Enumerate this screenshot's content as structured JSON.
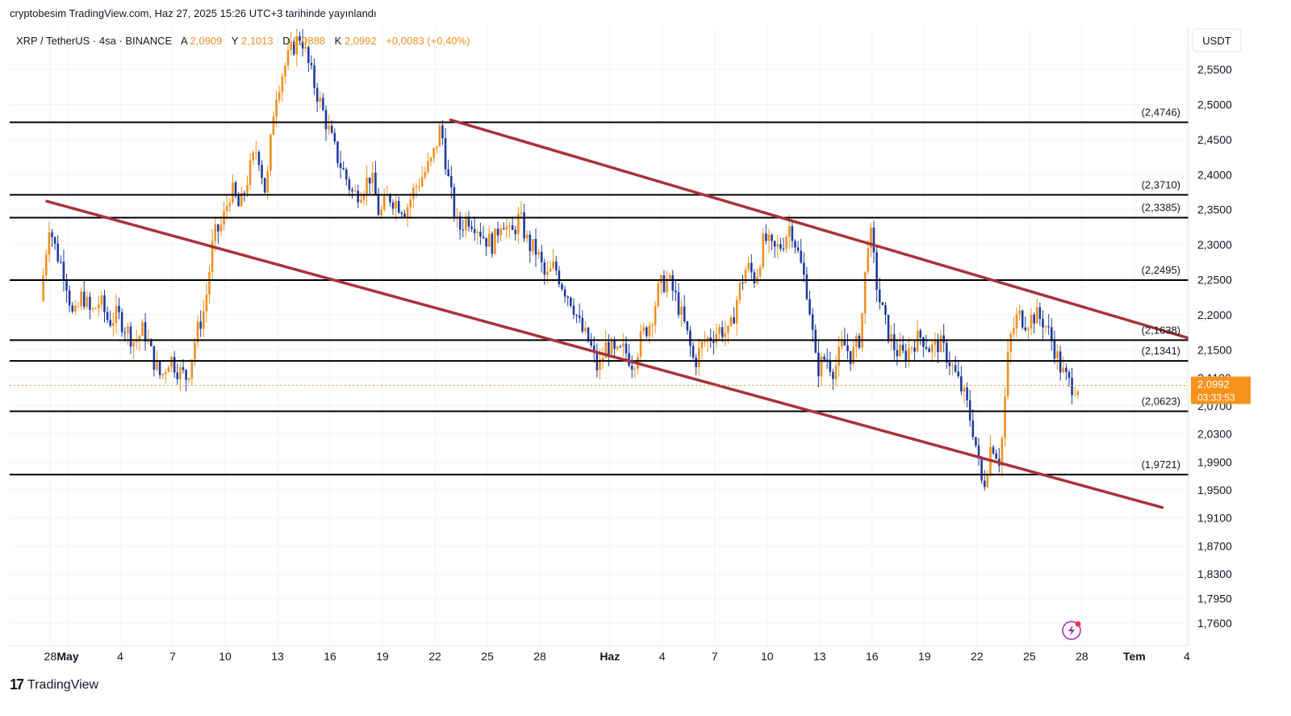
{
  "header": {
    "publisher": "cryptobesim TradingView.com, Haz 27, 2025 15:26 UTC+3 tarihinde yayınlandı"
  },
  "legend": {
    "symbol": "XRP / TetherUS · 4sa · BINANCE",
    "open_label": "A",
    "open_value": "2,0909",
    "high_label": "Y",
    "high_value": "2,1013",
    "low_label": "D",
    "low_value": "2,0888",
    "close_label": "K",
    "close_value": "2,0992",
    "change": "+0,0083 (+0,40%)"
  },
  "price_axis": {
    "currency": "USDT",
    "last_price": "2,0992",
    "countdown": "03:33:53",
    "colors": {
      "up": "#f0901e",
      "down": "#1f3c9e",
      "channel": "#a93239",
      "level": "#000000",
      "last_price_bg": "#f7931a"
    }
  },
  "footer": {
    "brand": "TradingView",
    "logo": "tradingview-logo-icon"
  },
  "chart_data": {
    "type": "candlestick",
    "title": "XRP / TetherUS · 4sa · BINANCE",
    "ylim": [
      1.73,
      2.63
    ],
    "y_ticks": [
      {
        "value": 2.55,
        "label": "2,5500"
      },
      {
        "value": 2.5,
        "label": "2,5000"
      },
      {
        "value": 2.45,
        "label": "2,4500"
      },
      {
        "value": 2.4,
        "label": "2,4000"
      },
      {
        "value": 2.35,
        "label": "2,3500"
      },
      {
        "value": 2.3,
        "label": "2,3000"
      },
      {
        "value": 2.25,
        "label": "2,2500"
      },
      {
        "value": 2.2,
        "label": "2,2000"
      },
      {
        "value": 2.15,
        "label": "2,1500"
      },
      {
        "value": 2.11,
        "label": "2,1100"
      },
      {
        "value": 2.07,
        "label": "2,0700"
      },
      {
        "value": 2.03,
        "label": "2,0300"
      },
      {
        "value": 1.99,
        "label": "1,9900"
      },
      {
        "value": 1.95,
        "label": "1,9500"
      },
      {
        "value": 1.91,
        "label": "1,9100"
      },
      {
        "value": 1.87,
        "label": "1,8700"
      },
      {
        "value": 1.83,
        "label": "1,8300"
      },
      {
        "value": 1.795,
        "label": "1,7950"
      },
      {
        "value": 1.76,
        "label": "1,7600"
      }
    ],
    "x_ticks": [
      {
        "day": -1,
        "label": "28"
      },
      {
        "day": 0,
        "label": "May"
      },
      {
        "day": 3,
        "label": "4"
      },
      {
        "day": 6,
        "label": "7"
      },
      {
        "day": 9,
        "label": "10"
      },
      {
        "day": 12,
        "label": "13"
      },
      {
        "day": 15,
        "label": "16"
      },
      {
        "day": 18,
        "label": "19"
      },
      {
        "day": 21,
        "label": "22"
      },
      {
        "day": 24,
        "label": "25"
      },
      {
        "day": 27,
        "label": "28"
      },
      {
        "day": 31,
        "label": "Haz"
      },
      {
        "day": 34,
        "label": "4"
      },
      {
        "day": 37,
        "label": "7"
      },
      {
        "day": 40,
        "label": "10"
      },
      {
        "day": 43,
        "label": "13"
      },
      {
        "day": 46,
        "label": "16"
      },
      {
        "day": 49,
        "label": "19"
      },
      {
        "day": 52,
        "label": "22"
      },
      {
        "day": 55,
        "label": "25"
      },
      {
        "day": 58,
        "label": "28"
      },
      {
        "day": 61,
        "label": "Tem"
      },
      {
        "day": 64,
        "label": "4"
      }
    ],
    "horizontal_levels": [
      {
        "value": 2.4746,
        "label": "(2,4746)"
      },
      {
        "value": 2.371,
        "label": "(2,3710)"
      },
      {
        "value": 2.3385,
        "label": "(2,3385)"
      },
      {
        "value": 2.2495,
        "label": "(2,2495)"
      },
      {
        "value": 2.1638,
        "label": "(2,1638)"
      },
      {
        "value": 2.1341,
        "label": "(2,1341)"
      },
      {
        "value": 2.0623,
        "label": "(2,0623)"
      },
      {
        "value": 1.9721,
        "label": "(1,9721)"
      }
    ],
    "channel_lines": [
      {
        "name": "upper",
        "points": [
          [
            21.9,
            2.478
          ],
          [
            64.05,
            2.167
          ]
        ]
      },
      {
        "name": "lower",
        "points": [
          [
            -1.2,
            2.362
          ],
          [
            62.6,
            1.925
          ]
        ]
      }
    ],
    "price_path": [
      [
        -1.4,
        2.22
      ],
      [
        -0.9,
        2.33
      ],
      [
        -0.5,
        2.29
      ],
      [
        0.0,
        2.26
      ],
      [
        0.5,
        2.19
      ],
      [
        1.0,
        2.23
      ],
      [
        1.5,
        2.2
      ],
      [
        2.0,
        2.22
      ],
      [
        2.5,
        2.19
      ],
      [
        3.0,
        2.2
      ],
      [
        3.5,
        2.18
      ],
      [
        4.0,
        2.16
      ],
      [
        4.5,
        2.18
      ],
      [
        5.0,
        2.14
      ],
      [
        5.5,
        2.11
      ],
      [
        6.0,
        2.14
      ],
      [
        6.5,
        2.12
      ],
      [
        7.0,
        2.11
      ],
      [
        7.5,
        2.17
      ],
      [
        8.0,
        2.21
      ],
      [
        8.5,
        2.31
      ],
      [
        9.0,
        2.33
      ],
      [
        9.5,
        2.38
      ],
      [
        10.0,
        2.35
      ],
      [
        10.5,
        2.4
      ],
      [
        11.0,
        2.44
      ],
      [
        11.5,
        2.37
      ],
      [
        12.0,
        2.51
      ],
      [
        12.5,
        2.55
      ],
      [
        13.0,
        2.58
      ],
      [
        13.5,
        2.6
      ],
      [
        14.0,
        2.55
      ],
      [
        14.5,
        2.51
      ],
      [
        15.0,
        2.47
      ],
      [
        15.5,
        2.43
      ],
      [
        16.0,
        2.4
      ],
      [
        16.5,
        2.37
      ],
      [
        17.0,
        2.38
      ],
      [
        17.5,
        2.4
      ],
      [
        18.0,
        2.34
      ],
      [
        18.5,
        2.37
      ],
      [
        19.0,
        2.36
      ],
      [
        19.5,
        2.35
      ],
      [
        20.0,
        2.38
      ],
      [
        20.5,
        2.4
      ],
      [
        21.0,
        2.42
      ],
      [
        21.5,
        2.47
      ],
      [
        22.0,
        2.38
      ],
      [
        22.5,
        2.32
      ],
      [
        23.0,
        2.34
      ],
      [
        23.5,
        2.33
      ],
      [
        24.0,
        2.31
      ],
      [
        24.5,
        2.3
      ],
      [
        25.0,
        2.34
      ],
      [
        25.5,
        2.31
      ],
      [
        26.0,
        2.34
      ],
      [
        26.5,
        2.3
      ],
      [
        27.0,
        2.29
      ],
      [
        27.5,
        2.25
      ],
      [
        28.0,
        2.27
      ],
      [
        28.5,
        2.24
      ],
      [
        29.0,
        2.22
      ],
      [
        29.5,
        2.18
      ],
      [
        30.0,
        2.16
      ],
      [
        30.5,
        2.12
      ],
      [
        31.0,
        2.16
      ],
      [
        31.5,
        2.14
      ],
      [
        32.0,
        2.15
      ],
      [
        32.5,
        2.13
      ],
      [
        33.0,
        2.17
      ],
      [
        33.5,
        2.19
      ],
      [
        34.0,
        2.24
      ],
      [
        34.5,
        2.25
      ],
      [
        35.0,
        2.22
      ],
      [
        35.5,
        2.18
      ],
      [
        36.0,
        2.13
      ],
      [
        36.5,
        2.16
      ],
      [
        37.0,
        2.17
      ],
      [
        37.5,
        2.18
      ],
      [
        38.0,
        2.17
      ],
      [
        38.5,
        2.23
      ],
      [
        39.0,
        2.27
      ],
      [
        39.5,
        2.25
      ],
      [
        40.0,
        2.31
      ],
      [
        40.5,
        2.29
      ],
      [
        41.0,
        2.3
      ],
      [
        41.5,
        2.33
      ],
      [
        42.0,
        2.28
      ],
      [
        42.5,
        2.23
      ],
      [
        43.0,
        2.12
      ],
      [
        43.5,
        2.14
      ],
      [
        44.0,
        2.12
      ],
      [
        44.5,
        2.16
      ],
      [
        45.0,
        2.14
      ],
      [
        45.5,
        2.17
      ],
      [
        46.0,
        2.33
      ],
      [
        46.5,
        2.23
      ],
      [
        47.0,
        2.18
      ],
      [
        47.5,
        2.15
      ],
      [
        48.0,
        2.14
      ],
      [
        48.5,
        2.16
      ],
      [
        49.0,
        2.17
      ],
      [
        49.5,
        2.15
      ],
      [
        50.0,
        2.16
      ],
      [
        50.5,
        2.14
      ],
      [
        51.0,
        2.11
      ],
      [
        51.5,
        2.08
      ],
      [
        52.0,
        2.03
      ],
      [
        52.5,
        1.95
      ],
      [
        53.0,
        2.02
      ],
      [
        53.5,
        1.99
      ],
      [
        54.0,
        2.16
      ],
      [
        54.5,
        2.2
      ],
      [
        55.0,
        2.19
      ],
      [
        55.5,
        2.2
      ],
      [
        56.0,
        2.19
      ],
      [
        56.5,
        2.16
      ],
      [
        57.0,
        2.12
      ],
      [
        57.5,
        2.1
      ],
      [
        57.9,
        2.0992
      ]
    ]
  }
}
